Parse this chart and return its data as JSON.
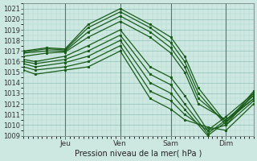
{
  "xlabel": "Pression niveau de la mer( hPa )",
  "bg_color": "#cce8e0",
  "grid_minor_color": "#b0d8d0",
  "grid_major_color": "#90c0b8",
  "line_color": "#1a5c1a",
  "ylim": [
    1009,
    1021.5
  ],
  "xlim": [
    0,
    100
  ],
  "yticks": [
    1009,
    1010,
    1011,
    1012,
    1013,
    1014,
    1015,
    1016,
    1017,
    1018,
    1019,
    1020,
    1021
  ],
  "xtick_positions": [
    18,
    42,
    64,
    88
  ],
  "xtick_labels": [
    "Jeu",
    "Ven",
    "Sam",
    "Dim"
  ],
  "vline_positions": [
    18,
    42,
    64,
    88
  ],
  "lines": [
    {
      "x": [
        0,
        10,
        18,
        28,
        42,
        55,
        64,
        70,
        76,
        88,
        100
      ],
      "y": [
        1017.0,
        1017.3,
        1017.2,
        1019.5,
        1021.0,
        1019.5,
        1018.3,
        1016.5,
        1013.5,
        1010.2,
        1013.2
      ]
    },
    {
      "x": [
        0,
        10,
        18,
        28,
        42,
        55,
        64,
        70,
        76,
        88,
        100
      ],
      "y": [
        1016.9,
        1017.2,
        1017.1,
        1019.2,
        1020.7,
        1019.2,
        1017.8,
        1016.0,
        1013.0,
        1010.0,
        1013.0
      ]
    },
    {
      "x": [
        0,
        10,
        18,
        28,
        42,
        55,
        64,
        70,
        76,
        88,
        100
      ],
      "y": [
        1016.8,
        1017.0,
        1017.0,
        1018.8,
        1020.3,
        1018.8,
        1017.3,
        1015.5,
        1012.5,
        1010.3,
        1012.8
      ]
    },
    {
      "x": [
        0,
        10,
        18,
        28,
        42,
        55,
        64,
        70,
        76,
        88,
        100
      ],
      "y": [
        1016.5,
        1016.8,
        1016.9,
        1018.3,
        1019.8,
        1018.3,
        1016.8,
        1015.0,
        1012.0,
        1010.5,
        1012.5
      ]
    },
    {
      "x": [
        0,
        5,
        18,
        28,
        42,
        55,
        64,
        70,
        80,
        88,
        100
      ],
      "y": [
        1016.2,
        1016.0,
        1016.5,
        1017.5,
        1019.0,
        1015.5,
        1014.5,
        1012.8,
        1009.5,
        1010.8,
        1013.0
      ]
    },
    {
      "x": [
        0,
        5,
        18,
        28,
        42,
        55,
        64,
        70,
        80,
        88,
        100
      ],
      "y": [
        1016.0,
        1015.8,
        1016.2,
        1017.0,
        1018.5,
        1014.8,
        1013.8,
        1012.0,
        1009.2,
        1010.5,
        1012.8
      ]
    },
    {
      "x": [
        0,
        5,
        18,
        28,
        42,
        55,
        64,
        70,
        80,
        88,
        100
      ],
      "y": [
        1015.8,
        1015.5,
        1015.9,
        1016.5,
        1018.0,
        1014.0,
        1013.0,
        1011.5,
        1009.0,
        1010.3,
        1012.5
      ]
    },
    {
      "x": [
        0,
        5,
        18,
        28,
        42,
        55,
        64,
        70,
        80,
        88,
        100
      ],
      "y": [
        1015.5,
        1015.2,
        1015.5,
        1016.0,
        1017.5,
        1013.2,
        1012.3,
        1011.0,
        1009.5,
        1010.0,
        1012.3
      ]
    },
    {
      "x": [
        0,
        5,
        18,
        28,
        42,
        55,
        64,
        70,
        80,
        88,
        100
      ],
      "y": [
        1015.2,
        1014.8,
        1015.2,
        1015.5,
        1017.0,
        1012.5,
        1011.5,
        1010.5,
        1009.8,
        1009.5,
        1012.0
      ]
    }
  ]
}
